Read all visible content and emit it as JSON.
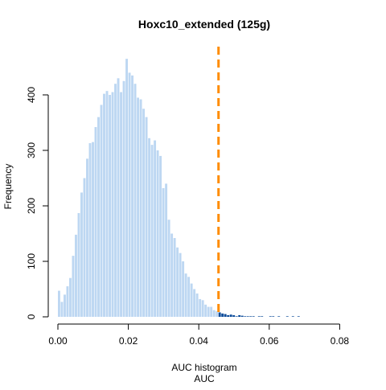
{
  "chart_data": {
    "type": "bar",
    "title": "Hoxc10_extended (125g)",
    "xlabel": "AUC histogram",
    "xlabel2": "AUC",
    "ylabel": "Frequency",
    "xlim": [
      0.0,
      0.084
    ],
    "ylim": [
      0,
      470
    ],
    "xticks": [
      0.0,
      0.02,
      0.04,
      0.06,
      0.08
    ],
    "xtick_labels": [
      "0.00",
      "0.02",
      "0.04",
      "0.06",
      "0.08"
    ],
    "yticks": [
      0,
      100,
      200,
      300,
      400
    ],
    "ytick_labels": [
      "0",
      "100",
      "200",
      "300",
      "400"
    ],
    "grid": false,
    "bin_width": 0.0008,
    "bin_start": 0.0,
    "threshold": 0.0456,
    "counts": [
      47,
      27,
      40,
      55,
      70,
      110,
      148,
      187,
      224,
      250,
      285,
      313,
      315,
      342,
      360,
      382,
      402,
      407,
      400,
      405,
      420,
      430,
      405,
      425,
      465,
      440,
      435,
      420,
      395,
      392,
      375,
      360,
      322,
      310,
      318,
      300,
      290,
      232,
      240,
      175,
      150,
      142,
      125,
      115,
      100,
      78,
      72,
      60,
      50,
      42,
      32,
      30,
      22,
      18,
      18,
      12,
      10,
      8,
      6,
      5,
      3,
      4,
      3,
      1,
      3,
      2,
      1,
      1,
      1,
      1,
      0,
      1,
      1,
      0,
      0,
      1,
      1,
      0,
      1,
      0,
      0,
      1,
      0,
      1,
      0,
      1
    ],
    "colors": {
      "below_threshold": "#bdd7f2",
      "above_threshold": "#0d4c9a",
      "threshold_line": "#ff8c00"
    }
  }
}
